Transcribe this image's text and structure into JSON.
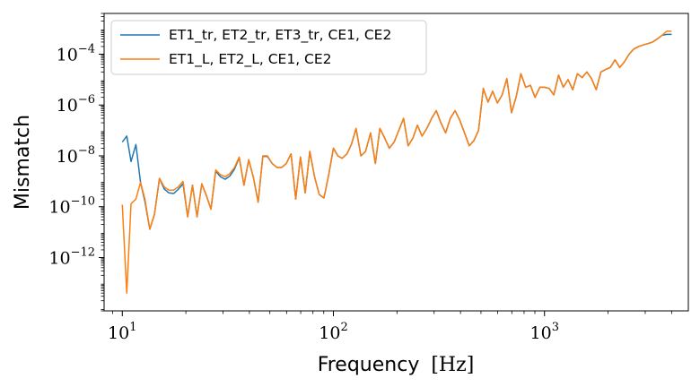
{
  "chart_data": {
    "type": "line",
    "title": "",
    "xlabel": "Frequency",
    "xlabel_unit": "[Hz]",
    "ylabel": "Mismatch",
    "xscale": "log",
    "yscale": "log",
    "xlim": [
      8.2,
      4800
    ],
    "ylim": [
      8e-15,
      0.004
    ],
    "xticks": [
      {
        "base": "10",
        "exp": "1",
        "value": 10
      },
      {
        "base": "10",
        "exp": "2",
        "value": 100
      },
      {
        "base": "10",
        "exp": "3",
        "value": 1000
      }
    ],
    "yticks": [
      {
        "base": "10",
        "exp": "−12",
        "value": 1e-12
      },
      {
        "base": "10",
        "exp": "−10",
        "value": 1e-10
      },
      {
        "base": "10",
        "exp": "−8",
        "value": 1e-08
      },
      {
        "base": "10",
        "exp": "−6",
        "value": 1e-06
      },
      {
        "base": "10",
        "exp": "−4",
        "value": 0.0001
      }
    ],
    "legend_position": "top-left",
    "series": [
      {
        "name": "ET1_tr, ET2_tr, ET3_tr, CE1, CE2",
        "color": "#1f77b4",
        "x": [
          10,
          10.5,
          11,
          11.6,
          12.2,
          12.8,
          13.5,
          14.2,
          15,
          15.8,
          16.6,
          17.5,
          18.4,
          19.4,
          20.4,
          21.5,
          22.6,
          23.8,
          25,
          26.3,
          27.7,
          29.2,
          30.7,
          32.3,
          34,
          35.8,
          37.7,
          39.7,
          41.8,
          44,
          46.3,
          48.7,
          51.3,
          54,
          56.8,
          59.8,
          63,
          66.3,
          69.8,
          73.5,
          77.3,
          81.4,
          85.7,
          90.2,
          95,
          100,
          105,
          110,
          116,
          122,
          128,
          135,
          142,
          150,
          158,
          166,
          175,
          184,
          194,
          204,
          215,
          226,
          238,
          250,
          263,
          277,
          292,
          307,
          323,
          340,
          358,
          377,
          397,
          418,
          440,
          463,
          487,
          513,
          540,
          568,
          598,
          630,
          663,
          698,
          735,
          773,
          814,
          857,
          902,
          950,
          1000,
          1052,
          1107,
          1166,
          1227,
          1292,
          1360,
          1431,
          1507,
          1586,
          1669,
          1757,
          1850,
          1947,
          2050,
          2157,
          2271,
          2390,
          2516,
          2649,
          2788,
          2935,
          3089,
          3252,
          3423,
          3603,
          3792,
          4000
        ],
        "y": [
          3.5e-08,
          6e-08,
          6e-09,
          2.8e-08,
          9e-10,
          1.6e-10,
          1.3e-11,
          5e-11,
          1.3e-09,
          5e-10,
          3.5e-10,
          3.3e-10,
          4.8e-10,
          8e-10,
          4e-11,
          7e-10,
          4e-11,
          8e-10,
          2.8e-10,
          8e-11,
          2.5e-09,
          1.5e-09,
          1.2e-09,
          1.6e-09,
          3e-09,
          8.5e-09,
          7e-10,
          7e-09,
          1.4e-09,
          1.5e-10,
          9.5e-09,
          9.5e-09,
          5e-09,
          3.5e-09,
          3.5e-09,
          5e-09,
          1.2e-08,
          2e-10,
          9e-09,
          3.5e-10,
          1.5e-08,
          1.5e-09,
          3e-10,
          2.2e-10,
          1.8e-09,
          2e-08,
          1e-08,
          8e-09,
          1.2e-08,
          3e-08,
          1.2e-07,
          1e-08,
          1.5e-08,
          8e-08,
          5e-09,
          1.2e-07,
          5e-08,
          2e-08,
          3.5e-08,
          1e-07,
          3e-07,
          2.5e-08,
          5e-08,
          1.6e-07,
          6e-08,
          1.2e-07,
          3e-07,
          6e-07,
          2e-07,
          8e-08,
          3e-07,
          6e-07,
          2.5e-07,
          8e-08,
          2.5e-08,
          4e-08,
          1e-07,
          4.5e-06,
          1.3e-06,
          3.5e-06,
          1.2e-06,
          2.5e-06,
          1.1e-05,
          5e-07,
          2.2e-06,
          1.7e-05,
          5e-06,
          6e-06,
          2e-06,
          5e-06,
          5e-06,
          4.5e-06,
          2.5e-06,
          1.5e-05,
          5e-06,
          1e-05,
          4e-06,
          1.7e-05,
          1.2e-05,
          2e-05,
          1.1e-05,
          4e-06,
          2e-05,
          2.5e-05,
          3e-05,
          6e-05,
          3e-05,
          5e-05,
          0.0001,
          0.00016,
          0.0002,
          0.00023,
          0.00026,
          0.0003,
          0.0004,
          0.00055,
          0.0006,
          0.0006
        ]
      },
      {
        "name": "ET1_L, ET2_L, CE1, CE2",
        "color": "#ff7f0e",
        "x": [
          10,
          10.5,
          11,
          11.6,
          12.2,
          12.8,
          13.5,
          14.2,
          15,
          15.8,
          16.6,
          17.5,
          18.4,
          19.4,
          20.4,
          21.5,
          22.6,
          23.8,
          25,
          26.3,
          27.7,
          29.2,
          30.7,
          32.3,
          34,
          35.8,
          37.7,
          39.7,
          41.8,
          44,
          46.3,
          48.7,
          51.3,
          54,
          56.8,
          59.8,
          63,
          66.3,
          69.8,
          73.5,
          77.3,
          81.4,
          85.7,
          90.2,
          95,
          100,
          105,
          110,
          116,
          122,
          128,
          135,
          142,
          150,
          158,
          166,
          175,
          184,
          194,
          204,
          215,
          226,
          238,
          250,
          263,
          277,
          292,
          307,
          323,
          340,
          358,
          377,
          397,
          418,
          440,
          463,
          487,
          513,
          540,
          568,
          598,
          630,
          663,
          698,
          735,
          773,
          814,
          857,
          902,
          950,
          1000,
          1052,
          1107,
          1166,
          1227,
          1292,
          1360,
          1431,
          1507,
          1586,
          1669,
          1757,
          1850,
          1947,
          2050,
          2157,
          2271,
          2390,
          2516,
          2649,
          2788,
          2935,
          3089,
          3252,
          3423,
          3603,
          3792,
          4000
        ],
        "y": [
          1.2e-10,
          4e-14,
          1.3e-10,
          2e-10,
          9e-10,
          2e-10,
          1.3e-11,
          5e-11,
          1.3e-09,
          6e-10,
          4.5e-10,
          4.5e-10,
          6e-10,
          1e-09,
          4e-11,
          7e-10,
          4e-11,
          8e-10,
          2.8e-10,
          8e-11,
          2.8e-09,
          1.8e-09,
          1.5e-09,
          2e-09,
          3.5e-09,
          9e-09,
          7e-10,
          7e-09,
          1.4e-09,
          1.5e-10,
          1e-08,
          1e-08,
          5e-09,
          3.5e-09,
          3.5e-09,
          5e-09,
          1.2e-08,
          2e-10,
          9e-09,
          3.5e-10,
          1.5e-08,
          1.5e-09,
          3e-10,
          2.2e-10,
          1.8e-09,
          2e-08,
          1e-08,
          8e-09,
          1.2e-08,
          3e-08,
          1.2e-07,
          1e-08,
          1.5e-08,
          8e-08,
          5e-09,
          1.2e-07,
          5e-08,
          2e-08,
          3.5e-08,
          1e-07,
          3e-07,
          2.5e-08,
          5e-08,
          1.6e-07,
          6e-08,
          1.2e-07,
          3e-07,
          6e-07,
          2e-07,
          8e-08,
          3e-07,
          6e-07,
          2.5e-07,
          8e-08,
          2.5e-08,
          4e-08,
          1e-07,
          4.5e-06,
          1.3e-06,
          3.5e-06,
          1.2e-06,
          2.5e-06,
          1.1e-05,
          5e-07,
          2.2e-06,
          1.7e-05,
          5e-06,
          6e-06,
          2e-06,
          5e-06,
          5e-06,
          4.5e-06,
          2.5e-06,
          1.5e-05,
          5e-06,
          1e-05,
          4e-06,
          1.7e-05,
          1.2e-05,
          2e-05,
          1.1e-05,
          4e-06,
          2e-05,
          2.5e-05,
          3e-05,
          6e-05,
          3e-05,
          5e-05,
          0.0001,
          0.00016,
          0.0002,
          0.00023,
          0.00026,
          0.0003,
          0.0004,
          0.00055,
          0.0008,
          0.0008
        ]
      }
    ]
  }
}
